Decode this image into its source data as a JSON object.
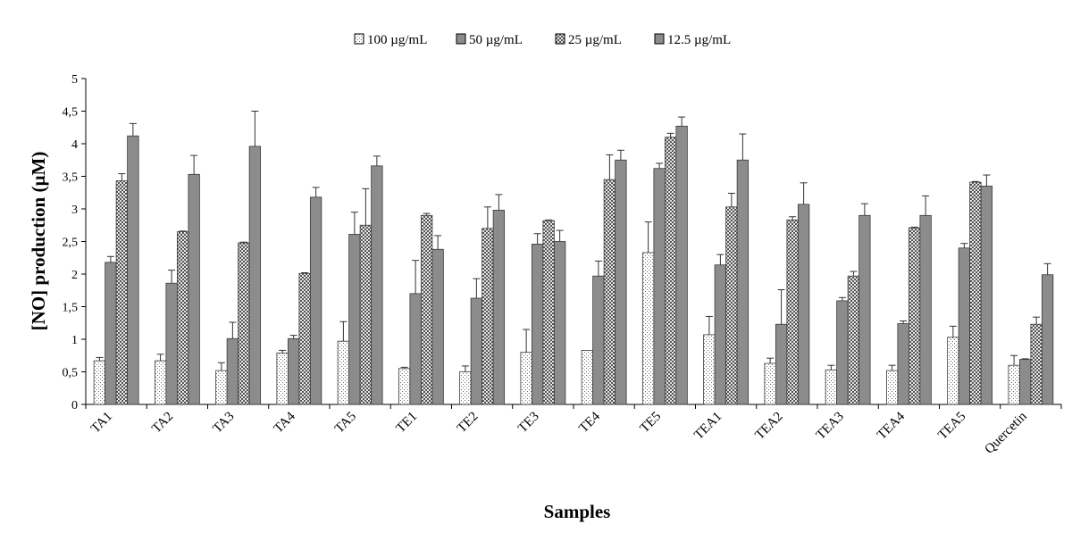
{
  "chart_data": {
    "type": "bar",
    "title": "",
    "xlabel": "Samples",
    "ylabel": "[NO] production (µM)",
    "ylim": [
      0,
      5
    ],
    "yticks": [
      "0",
      "0,5",
      "1",
      "1,5",
      "2",
      "2,5",
      "3",
      "3,5",
      "4",
      "4,5",
      "5"
    ],
    "legend_position": "top-center",
    "categories": [
      "TA1",
      "TA2",
      "TA3",
      "TA4",
      "TA5",
      "TE1",
      "TE2",
      "TE3",
      "TE4",
      "TE5",
      "TEA1",
      "TEA2",
      "TEA3",
      "TEA4",
      "TEA5",
      "Quercetin"
    ],
    "series": [
      {
        "name": "100 µg/mL",
        "pattern": "dots",
        "fill": "#ffffff",
        "values": [
          0.67,
          0.67,
          0.52,
          0.79,
          0.97,
          0.55,
          0.5,
          0.8,
          0.83,
          2.33,
          1.07,
          0.63,
          0.53,
          0.52,
          1.03,
          0.6
        ],
        "errors": [
          0.05,
          0.1,
          0.12,
          0.04,
          0.3,
          0.02,
          0.09,
          0.35,
          0.0,
          0.47,
          0.28,
          0.08,
          0.07,
          0.08,
          0.17,
          0.15
        ]
      },
      {
        "name": "50 µg/mL",
        "pattern": "solid",
        "fill": "#8c8c8c",
        "values": [
          2.18,
          1.86,
          1.01,
          1.01,
          2.61,
          1.7,
          1.63,
          2.46,
          1.97,
          3.62,
          2.14,
          1.23,
          1.59,
          1.24,
          2.4,
          0.69
        ],
        "errors": [
          0.09,
          0.2,
          0.25,
          0.05,
          0.34,
          0.51,
          0.3,
          0.16,
          0.23,
          0.08,
          0.16,
          0.53,
          0.05,
          0.04,
          0.07,
          0.01
        ]
      },
      {
        "name": "25 µg/mL",
        "pattern": "checker",
        "fill": "#d4d4d4",
        "values": [
          3.43,
          2.65,
          2.48,
          2.01,
          2.75,
          2.9,
          2.7,
          2.82,
          3.45,
          4.1,
          3.03,
          2.83,
          1.97,
          2.71,
          3.41,
          1.23
        ],
        "errors": [
          0.11,
          0.01,
          0.01,
          0.01,
          0.56,
          0.03,
          0.33,
          0.01,
          0.38,
          0.06,
          0.21,
          0.05,
          0.07,
          0.01,
          0.01,
          0.11
        ]
      },
      {
        "name": "12.5 µg/mL",
        "pattern": "solid",
        "fill": "#8c8c8c",
        "values": [
          4.12,
          3.53,
          3.96,
          3.18,
          3.66,
          2.38,
          2.98,
          2.5,
          3.75,
          4.27,
          3.75,
          3.07,
          2.9,
          2.9,
          3.35,
          1.99
        ],
        "errors": [
          0.19,
          0.29,
          0.54,
          0.15,
          0.15,
          0.21,
          0.24,
          0.17,
          0.15,
          0.14,
          0.4,
          0.33,
          0.18,
          0.3,
          0.17,
          0.17
        ]
      }
    ]
  }
}
